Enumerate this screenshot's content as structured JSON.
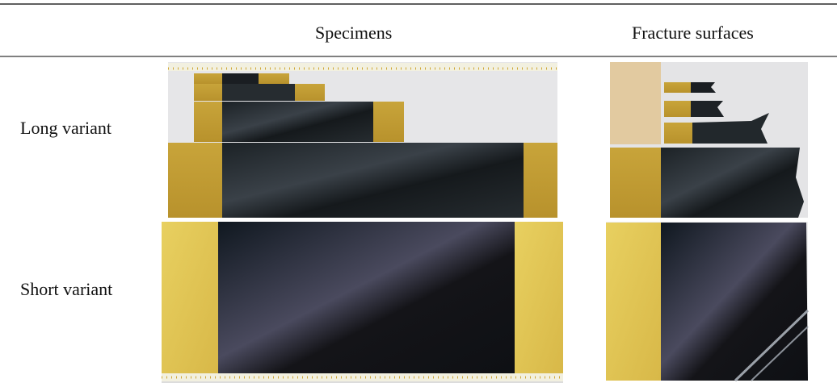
{
  "table": {
    "columns": [
      "Specimens",
      "Fracture surfaces"
    ],
    "rows": [
      {
        "label": "Long variant"
      },
      {
        "label": "Short variant"
      }
    ]
  }
}
